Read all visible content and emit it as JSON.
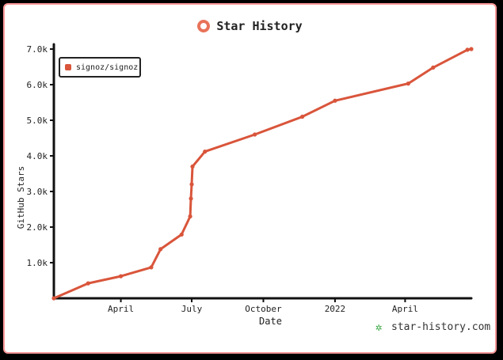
{
  "card": {
    "title": "Star History",
    "credit": "star-history.com"
  },
  "chart_data": {
    "type": "line",
    "title": "Star History",
    "xlabel": "Date",
    "ylabel": "GitHub Stars",
    "ylim": [
      0,
      7000
    ],
    "xlim": [
      "2021-01-05",
      "2022-06-25"
    ],
    "grid": false,
    "legend_position": "top-left",
    "y_ticks": [
      {
        "value": 1000,
        "label": "1.0k"
      },
      {
        "value": 2000,
        "label": "2.0k"
      },
      {
        "value": 3000,
        "label": "3.0k"
      },
      {
        "value": 4000,
        "label": "4.0k"
      },
      {
        "value": 5000,
        "label": "5.0k"
      },
      {
        "value": 6000,
        "label": "6.0k"
      },
      {
        "value": 7000,
        "label": "7.0k"
      }
    ],
    "x_ticks": [
      {
        "value": "2021-04-01",
        "label": "April"
      },
      {
        "value": "2021-07-01",
        "label": "July"
      },
      {
        "value": "2021-10-01",
        "label": "October"
      },
      {
        "value": "2022-01-01",
        "label": "2022"
      },
      {
        "value": "2022-04-01",
        "label": "April"
      }
    ],
    "series": [
      {
        "name": "signoz/signoz",
        "color": "#d9553b",
        "points": [
          {
            "x": "2021-01-05",
            "y": 0
          },
          {
            "x": "2021-02-18",
            "y": 420
          },
          {
            "x": "2021-04-01",
            "y": 620
          },
          {
            "x": "2021-05-10",
            "y": 870
          },
          {
            "x": "2021-05-22",
            "y": 1380
          },
          {
            "x": "2021-06-18",
            "y": 1790
          },
          {
            "x": "2021-06-29",
            "y": 2300
          },
          {
            "x": "2021-06-30",
            "y": 2800
          },
          {
            "x": "2021-07-01",
            "y": 3200
          },
          {
            "x": "2021-07-02",
            "y": 3700
          },
          {
            "x": "2021-07-18",
            "y": 4120
          },
          {
            "x": "2021-09-20",
            "y": 4600
          },
          {
            "x": "2021-11-20",
            "y": 5100
          },
          {
            "x": "2022-01-01",
            "y": 5550
          },
          {
            "x": "2022-04-05",
            "y": 6030
          },
          {
            "x": "2022-05-07",
            "y": 6480
          },
          {
            "x": "2022-06-20",
            "y": 6980
          },
          {
            "x": "2022-06-25",
            "y": 7000
          }
        ]
      }
    ]
  }
}
